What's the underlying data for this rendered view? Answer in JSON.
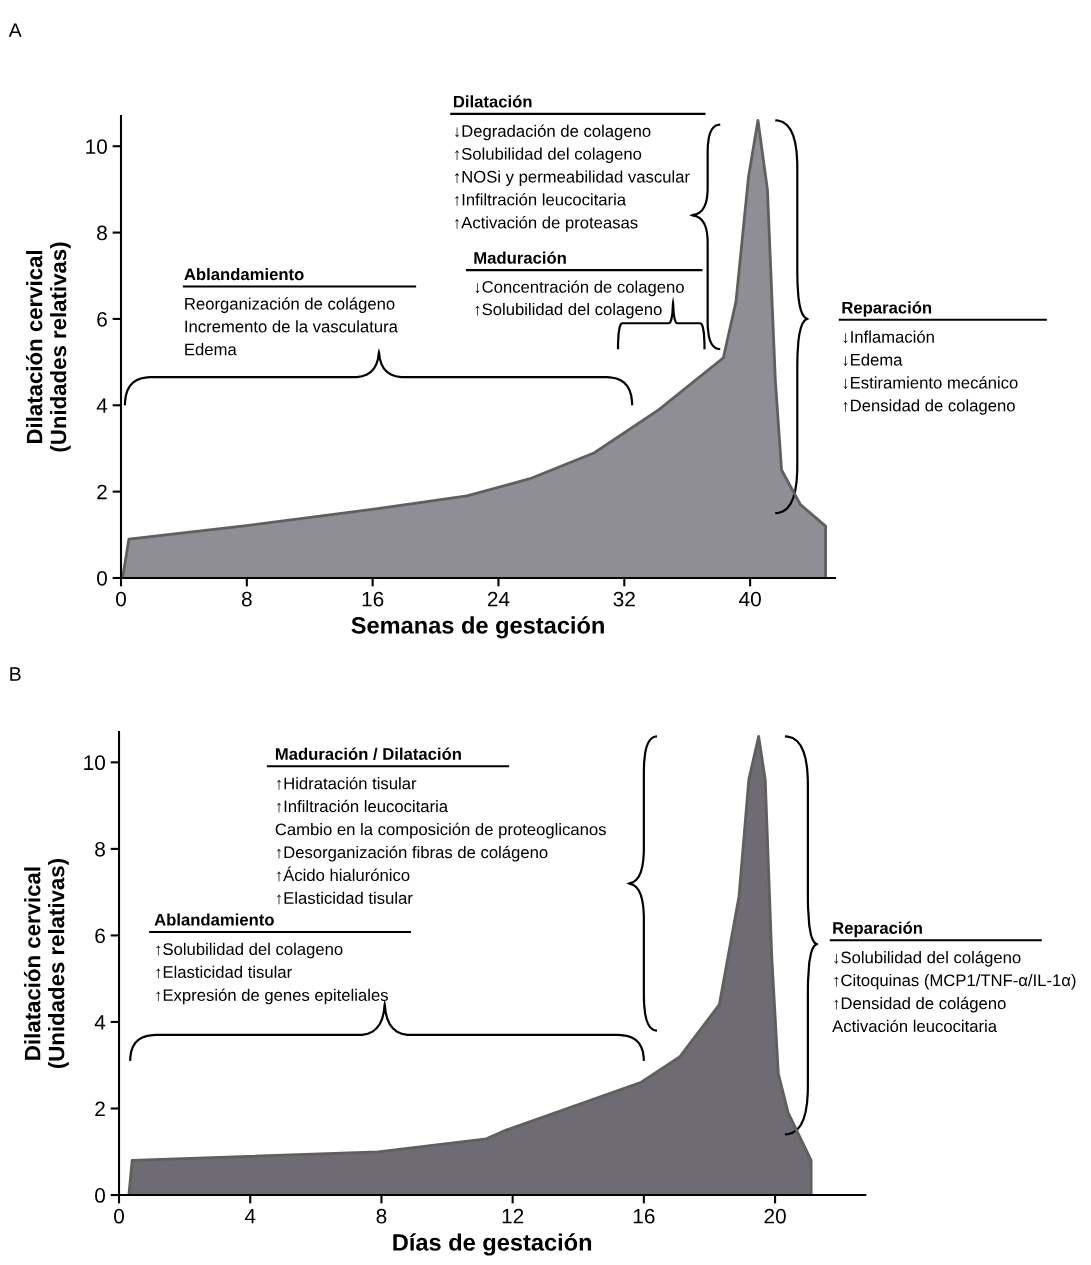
{
  "chart_data": [
    {
      "type": "area",
      "title": "A",
      "xlabel": "Semanas de gestación",
      "ylabel": "Dilatación cervical\n(Unidades relativas)",
      "x": [
        0.1,
        0.5,
        7.7,
        16.2,
        22.0,
        26.0,
        30.1,
        34.2,
        38.3,
        39.1,
        39.9,
        40.5,
        41.1,
        41.6,
        42.0,
        43.2,
        44.8,
        44.8
      ],
      "series": [
        {
          "color": "#8f8e94",
          "values": [
            0,
            0.9,
            1.2,
            1.6,
            1.9,
            2.3,
            2.9,
            3.9,
            5.1,
            6.4,
            9.3,
            10.6,
            9.0,
            4.6,
            2.5,
            1.7,
            1.2,
            0
          ]
        }
      ],
      "xlim": [
        0,
        45.4
      ],
      "ylim": [
        0,
        10.7
      ],
      "xticks": [
        0,
        8,
        16,
        24,
        32,
        40
      ],
      "yticks": [
        0,
        2,
        4,
        6,
        8,
        10
      ],
      "annotations": [
        "Dilatación",
        "↓Degradación de colageno",
        "↑Solubilidad del colageno",
        "↑NOSi y permeabilidad vascular",
        "↑Infiltración leucocitaria",
        "↑Activación de proteasas",
        "Maduración",
        "↓Concentración de colageno",
        "↑Solubilidad del colageno",
        "Ablandamiento",
        "Reorganización de colágeno",
        "Incremento de la vasculatura",
        "Edema",
        "Reparación",
        "↓Inflamación",
        "↓Edema",
        "↓Estiramiento mecánico",
        "↑Densidad de colageno"
      ]
    },
    {
      "type": "area",
      "title": "B",
      "xlabel": "Días de gestación",
      "ylabel": "Dilatación cervical\n(Unidades relativas)",
      "x": [
        0.3,
        0.4,
        7.9,
        11.2,
        11.8,
        15.9,
        17.1,
        18.3,
        18.9,
        19.2,
        19.5,
        19.7,
        19.9,
        20.1,
        20.4,
        21.1,
        21.1
      ],
      "series": [
        {
          "color": "#6e6c72",
          "values": [
            0,
            0.8,
            1.0,
            1.3,
            1.5,
            2.6,
            3.2,
            4.4,
            6.9,
            9.6,
            10.6,
            9.6,
            5.5,
            2.8,
            1.9,
            0.8,
            0
          ]
        }
      ],
      "xlim": [
        0,
        22.75
      ],
      "ylim": [
        0,
        10.7
      ],
      "xticks": [
        0,
        4,
        8,
        12,
        16,
        20
      ],
      "yticks": [
        0,
        2,
        4,
        6,
        8,
        10
      ],
      "annotations": [
        "Maduración / Dilatación",
        "↑Hidratación tisular",
        "↑Infiltración leucocitaria",
        "Cambio en la composición de proteoglicanos",
        "↑Desorganización fibras de colágeno",
        "↑Ácido hialurónico",
        "↑Elasticidad tisular",
        "Ablandamiento",
        "↑Solubilidad del colageno",
        "↑Elasticidad tisular",
        "↑Expresión de genes epiteliales",
        "Reparación",
        "↓Solubilidad del colágeno",
        "↑Citoquinas (MCP1/TNF-α/IL-1α)",
        "↑Densidad de colágeno",
        "Activación leucocitaria"
      ]
    }
  ]
}
